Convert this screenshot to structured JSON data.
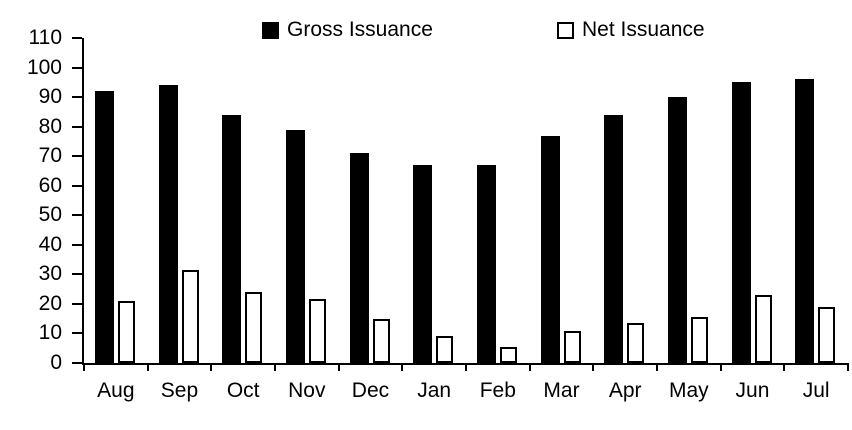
{
  "chart_data": {
    "type": "bar",
    "title": "",
    "xlabel": "",
    "ylabel": "",
    "categories": [
      "Aug",
      "Sep",
      "Oct",
      "Nov",
      "Dec",
      "Jan",
      "Feb",
      "Mar",
      "Apr",
      "May",
      "Jun",
      "Jul"
    ],
    "series": [
      {
        "name": "Gross Issuance",
        "values": [
          92,
          94,
          84,
          79,
          71,
          67,
          67,
          77,
          84,
          90,
          95,
          96
        ],
        "fill": "#000000",
        "stroke": "#000000"
      },
      {
        "name": "Net Issuance",
        "values": [
          21,
          31.5,
          24,
          21.5,
          15,
          9,
          5.5,
          11,
          13.5,
          15.5,
          23,
          19
        ],
        "fill": "#ffffff",
        "stroke": "#000000"
      }
    ],
    "ylim": [
      0,
      110
    ],
    "yticks": [
      0,
      10,
      20,
      30,
      40,
      50,
      60,
      70,
      80,
      90,
      100,
      110
    ],
    "grid": false,
    "legend_position": "top",
    "background": "#ffffff",
    "axis_color": "#000000"
  },
  "legend": {
    "gross_label": "Gross Issuance",
    "net_label": "Net Issuance"
  }
}
